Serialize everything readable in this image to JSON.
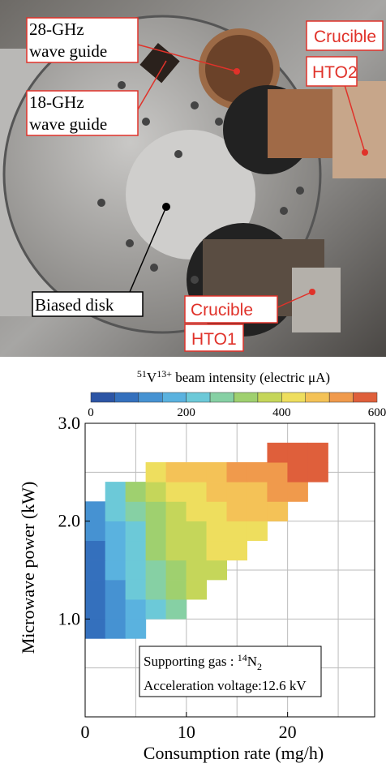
{
  "photo": {
    "labels": {
      "wg28": [
        "28-GHz",
        "wave guide"
      ],
      "wg18": [
        "18-GHz",
        "wave guide"
      ],
      "hto2": [
        "Crucible",
        "HTO2"
      ],
      "disk": "Biased disk",
      "hto1": [
        "Crucible",
        "HTO1"
      ]
    }
  },
  "chart_data": {
    "type": "contour",
    "colorbar_title": {
      "mass": "51",
      "element": "V",
      "charge": "13+",
      "text": " beam intensity (electric μA)"
    },
    "levels": [
      0,
      50,
      100,
      150,
      200,
      250,
      300,
      350,
      400,
      450,
      500,
      550,
      600
    ],
    "colorbar_ticks": [
      0,
      200,
      400,
      600
    ],
    "colors": [
      "#2c55a5",
      "#3470bd",
      "#4692d2",
      "#5ab2df",
      "#6cc9d8",
      "#86d0a4",
      "#9fd06f",
      "#c5d65a",
      "#eede5e",
      "#f4c257",
      "#f09a4c",
      "#df5f3b"
    ],
    "x_label": "Consumption rate (mg/h)",
    "y_label": "Microwave power (kW)",
    "x": [
      1,
      3,
      5,
      7,
      9,
      11,
      13,
      15,
      17,
      19,
      21,
      23
    ],
    "y": [
      0.9,
      1.1,
      1.3,
      1.5,
      1.7,
      1.9,
      2.1,
      2.3,
      2.5,
      2.7
    ],
    "cell_size": [
      2,
      0.2
    ],
    "z": [
      [
        60,
        120,
        170,
        null,
        null,
        null,
        null,
        null,
        null,
        null,
        null,
        null
      ],
      [
        70,
        130,
        190,
        230,
        280,
        null,
        null,
        null,
        null,
        null,
        null,
        null
      ],
      [
        80,
        140,
        200,
        260,
        310,
        350,
        null,
        null,
        null,
        null,
        null,
        null
      ],
      [
        90,
        150,
        210,
        280,
        330,
        370,
        390,
        null,
        null,
        null,
        null,
        null
      ],
      [
        90,
        160,
        220,
        300,
        350,
        380,
        400,
        420,
        null,
        null,
        null,
        null
      ],
      [
        100,
        180,
        240,
        310,
        360,
        390,
        410,
        430,
        440,
        null,
        null,
        null
      ],
      [
        120,
        200,
        260,
        330,
        380,
        410,
        430,
        450,
        460,
        480,
        null,
        null
      ],
      [
        null,
        230,
        300,
        360,
        420,
        440,
        460,
        480,
        490,
        510,
        530,
        null
      ],
      [
        null,
        null,
        null,
        400,
        460,
        470,
        490,
        510,
        520,
        540,
        570,
        590
      ],
      [
        null,
        null,
        null,
        null,
        null,
        null,
        null,
        null,
        null,
        560,
        590,
        600
      ]
    ],
    "xlim": [
      0,
      28.6
    ],
    "ylim": [
      0,
      3.0
    ],
    "xticks": [
      0,
      10,
      20
    ],
    "yticks": [
      {
        "value": 1,
        "label": "1.0"
      },
      {
        "value": 2,
        "label": "2.0"
      },
      {
        "value": 3,
        "label": "3.0"
      }
    ],
    "xgrid": [
      5,
      10,
      15,
      20,
      25
    ],
    "ygrid": [
      0.5,
      1,
      1.5,
      2,
      2.5
    ],
    "annotation": {
      "gas_prefix": "Supporting gas : ",
      "gas_mass": "14",
      "gas_element": "N",
      "gas_count": "2",
      "voltage": "Acceleration voltage:12.6 kV"
    }
  }
}
